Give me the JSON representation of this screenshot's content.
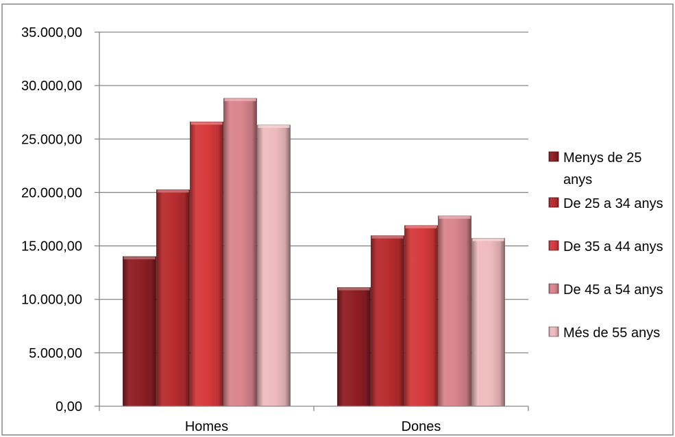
{
  "chart_data": {
    "type": "bar",
    "categories": [
      "Homes",
      "Dones"
    ],
    "series": [
      {
        "name": "Menys de 25 anys",
        "values": [
          14000,
          11100
        ],
        "color": "#8e1f24"
      },
      {
        "name": "De 25 a 34 anys",
        "values": [
          20250,
          15950
        ],
        "color": "#b82c2f"
      },
      {
        "name": "De 35 a 44 anys",
        "values": [
          26600,
          16900
        ],
        "color": "#d63a3c"
      },
      {
        "name": "De 45 a 54 anys",
        "values": [
          28800,
          17800
        ],
        "color": "#d9858c"
      },
      {
        "name": "Més de 55 anys",
        "values": [
          26300,
          15700
        ],
        "color": "#efbcbe"
      }
    ],
    "yticks": [
      "0,00",
      "5.000,00",
      "10.000,00",
      "15.000,00",
      "20.000,00",
      "25.000,00",
      "30.000,00",
      "35.000,00"
    ],
    "legend_display": [
      [
        "Menys de 25",
        "anys"
      ],
      [
        "De 25 a 34 anys"
      ],
      [
        "De 35 a 44 anys"
      ],
      [
        "De 45 a 54 anys"
      ],
      [
        "Més de 55 anys"
      ]
    ],
    "ylim": [
      0,
      35000
    ],
    "grid": true,
    "legend_position": "right",
    "title": "",
    "xlabel": "",
    "ylabel": ""
  }
}
